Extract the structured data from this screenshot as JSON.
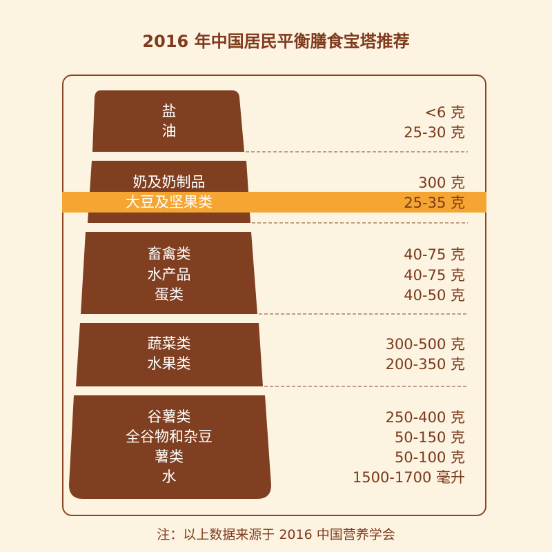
{
  "title": "2016 年中国居民平衡膳食宝塔推荐",
  "colors": {
    "background": "#fdf3e1",
    "pyramid": "#7f3f20",
    "highlight": "#f5a532",
    "text": "#7a3a1c"
  },
  "levels": [
    {
      "items": [
        {
          "name": "盐",
          "amount": "<6 克"
        },
        {
          "name": "油",
          "amount": "25-30 克"
        }
      ]
    },
    {
      "items": [
        {
          "name": "奶及奶制品",
          "amount": "300 克"
        },
        {
          "name": "大豆及坚果类",
          "amount": "25-35 克",
          "highlighted": true
        }
      ]
    },
    {
      "items": [
        {
          "name": "畜禽类",
          "amount": "40-75 克"
        },
        {
          "name": "水产品",
          "amount": "40-75 克"
        },
        {
          "name": "蛋类",
          "amount": "40-50 克"
        }
      ]
    },
    {
      "items": [
        {
          "name": "蔬菜类",
          "amount": "300-500 克"
        },
        {
          "name": "水果类",
          "amount": "200-350 克"
        }
      ]
    },
    {
      "items": [
        {
          "name": "谷薯类",
          "amount": "250-400 克"
        },
        {
          "name": "全谷物和杂豆",
          "amount": "50-150 克"
        },
        {
          "name": "薯类",
          "amount": "50-100 克"
        },
        {
          "name": "水",
          "amount": "1500-1700 毫升"
        }
      ]
    }
  ],
  "note": "注：以上数据来源于 2016 中国营养学会"
}
